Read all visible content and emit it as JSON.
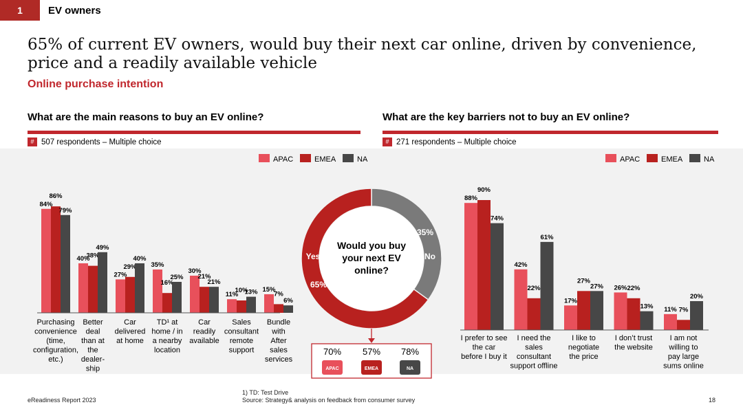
{
  "header": {
    "section_number": "1",
    "section_title": "EV owners"
  },
  "headline": "65% of current EV owners, would buy their next car online, driven by convenience, price and a readily available vehicle",
  "subtitle": "Online purchase intention",
  "colors": {
    "apac": "#e8505b",
    "emea": "#b8211f",
    "na": "#474747",
    "accent": "#c0272d",
    "panel": "#f2f2f2"
  },
  "left_panel": {
    "title": "What are the main reasons to buy an EV online?",
    "hash": "#",
    "respondents": "507 respondents – Multiple choice"
  },
  "right_panel": {
    "title": "What are the key barriers not to buy an EV online?",
    "hash": "#",
    "respondents": "271 respondents – Multiple choice"
  },
  "donut": {
    "question": "Would you buy your next EV online?",
    "yes_label": "Yes",
    "no_label": "No",
    "yes_value": "65%",
    "no_value": "35%",
    "regions": [
      {
        "value": "70%",
        "label": "APAC"
      },
      {
        "value": "57%",
        "label": "EMEA"
      },
      {
        "value": "78%",
        "label": "NA"
      }
    ]
  },
  "footer": {
    "report": "eReadiness Report 2023",
    "footnote": "1) TD: Test Drive",
    "source": "Source: Strategy& analysis on feedback from consumer survey",
    "page": "18"
  },
  "chart_data": [
    {
      "type": "bar",
      "title": "What are the main reasons to buy an EV online?",
      "legend": [
        "APAC",
        "EMEA",
        "NA"
      ],
      "legend_position": "top-right",
      "ylim": [
        0,
        100
      ],
      "unit": "%",
      "categories": [
        {
          "lines": [
            "Purchasing",
            "convenience",
            "(time,",
            "configuration,",
            "etc.)"
          ]
        },
        {
          "lines": [
            "Better",
            "deal",
            "than at",
            "the",
            "dealer-",
            "ship"
          ]
        },
        {
          "lines": [
            "Car",
            "delivered",
            "at home"
          ]
        },
        {
          "lines": [
            "TD¹ at",
            "home / in",
            "a nearby",
            "location"
          ]
        },
        {
          "lines": [
            "Car",
            "readily",
            "available"
          ]
        },
        {
          "lines": [
            "Sales",
            "consultant",
            "remote",
            "support"
          ]
        },
        {
          "lines": [
            "Bundle",
            "with",
            "After",
            "sales",
            "services"
          ]
        }
      ],
      "series": [
        {
          "name": "APAC",
          "values": [
            84,
            40,
            27,
            35,
            30,
            11,
            15
          ]
        },
        {
          "name": "EMEA",
          "values": [
            86,
            38,
            29,
            16,
            21,
            10,
            7
          ]
        },
        {
          "name": "NA",
          "values": [
            79,
            49,
            40,
            25,
            21,
            13,
            6
          ]
        }
      ]
    },
    {
      "type": "bar",
      "title": "What are the key barriers not to buy an EV online?",
      "legend": [
        "APAC",
        "EMEA",
        "NA"
      ],
      "legend_position": "top-right",
      "ylim": [
        0,
        100
      ],
      "unit": "%",
      "categories": [
        {
          "lines": [
            "I prefer to see",
            "the car",
            "before I buy it"
          ]
        },
        {
          "lines": [
            "I need the",
            "sales",
            "consultant",
            "support offline"
          ]
        },
        {
          "lines": [
            "I like to",
            "negotiate",
            "the price"
          ]
        },
        {
          "lines": [
            "I don’t trust",
            "the website"
          ]
        },
        {
          "lines": [
            "I am not",
            "willing to",
            "pay large",
            "sums online"
          ]
        }
      ],
      "series": [
        {
          "name": "APAC",
          "values": [
            88,
            42,
            17,
            26,
            11
          ]
        },
        {
          "name": "EMEA",
          "values": [
            90,
            22,
            27,
            22,
            7
          ]
        },
        {
          "name": "NA",
          "values": [
            74,
            61,
            27,
            13,
            20
          ]
        }
      ]
    },
    {
      "type": "pie",
      "title": "Would you buy your next EV online?",
      "labels": [
        "Yes",
        "No"
      ],
      "values": [
        65,
        35
      ],
      "unit": "%"
    }
  ]
}
